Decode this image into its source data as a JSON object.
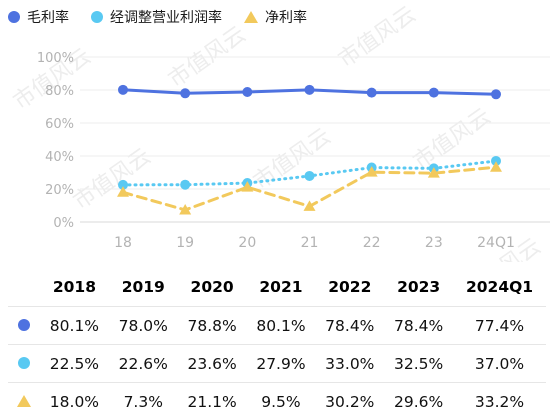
{
  "chart_data": {
    "type": "line",
    "categories": [
      "18",
      "19",
      "20",
      "21",
      "22",
      "23",
      "24Q1"
    ],
    "ylim": [
      0,
      100
    ],
    "yticks": [
      "0%",
      "20%",
      "40%",
      "60%",
      "80%",
      "100%"
    ],
    "grid": true,
    "legend_position": "top-left",
    "series": [
      {
        "name": "毛利率",
        "color": "#4e72e0",
        "marker": "circle",
        "style": "solid",
        "values": [
          80.1,
          78.0,
          78.8,
          80.1,
          78.4,
          78.4,
          77.4
        ]
      },
      {
        "name": "经调整营业利润率",
        "color": "#59c9f2",
        "marker": "circle",
        "style": "dotted",
        "values": [
          22.5,
          22.6,
          23.6,
          27.9,
          33.0,
          32.5,
          37.0
        ]
      },
      {
        "name": "净利率",
        "color": "#f2c95c",
        "marker": "triangle",
        "style": "dashed",
        "values": [
          18.0,
          7.3,
          21.1,
          9.5,
          30.2,
          29.6,
          33.2
        ]
      }
    ]
  },
  "table": {
    "headers": [
      "2018",
      "2019",
      "2020",
      "2021",
      "2022",
      "2023",
      "2024Q1"
    ],
    "rows": [
      [
        "80.1%",
        "78.0%",
        "78.8%",
        "80.1%",
        "78.4%",
        "78.4%",
        "77.4%"
      ],
      [
        "22.5%",
        "22.6%",
        "23.6%",
        "27.9%",
        "33.0%",
        "32.5%",
        "37.0%"
      ],
      [
        "18.0%",
        "7.3%",
        "21.1%",
        "9.5%",
        "30.2%",
        "29.6%",
        "33.2%"
      ]
    ]
  },
  "watermark": "市值风云"
}
